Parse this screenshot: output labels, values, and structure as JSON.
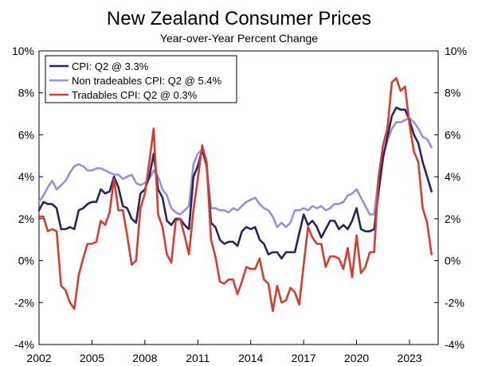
{
  "chart_data": {
    "type": "line",
    "title": "New Zealand Consumer Prices",
    "subtitle": "Year-over-Year Percent Change",
    "xlabel": "",
    "ylabel": "",
    "x_ticks": [
      "2002",
      "2005",
      "2008",
      "2011",
      "2014",
      "2017",
      "2020",
      "2023"
    ],
    "y_ticks": [
      "10%",
      "8%",
      "6%",
      "4%",
      "2%",
      "0%",
      "-2%",
      "-4%"
    ],
    "ylim": [
      -4,
      10
    ],
    "xlim": [
      "2002Q1",
      "2024Q3"
    ],
    "legend_position": "top-left",
    "grid": false,
    "series": [
      {
        "name": "CPI: Q2 @ 3.3%",
        "color": "#2b2262",
        "values": [
          [
            "2002Q1",
            2.4
          ],
          [
            "2002Q2",
            2.8
          ],
          [
            "2002Q3",
            2.7
          ],
          [
            "2002Q4",
            2.7
          ],
          [
            "2003Q1",
            2.5
          ],
          [
            "2003Q2",
            1.5
          ],
          [
            "2003Q3",
            1.5
          ],
          [
            "2003Q4",
            1.6
          ],
          [
            "2004Q1",
            1.5
          ],
          [
            "2004Q2",
            2.4
          ],
          [
            "2004Q3",
            2.5
          ],
          [
            "2004Q4",
            2.7
          ],
          [
            "2005Q1",
            2.8
          ],
          [
            "2005Q2",
            2.8
          ],
          [
            "2005Q3",
            3.4
          ],
          [
            "2005Q4",
            3.2
          ],
          [
            "2006Q1",
            3.3
          ],
          [
            "2006Q2",
            4.0
          ],
          [
            "2006Q3",
            3.5
          ],
          [
            "2006Q4",
            2.6
          ],
          [
            "2007Q1",
            2.5
          ],
          [
            "2007Q2",
            2.0
          ],
          [
            "2007Q3",
            1.8
          ],
          [
            "2007Q4",
            3.2
          ],
          [
            "2008Q1",
            3.4
          ],
          [
            "2008Q2",
            4.0
          ],
          [
            "2008Q3",
            5.1
          ],
          [
            "2008Q4",
            3.4
          ],
          [
            "2009Q1",
            3.0
          ],
          [
            "2009Q2",
            1.9
          ],
          [
            "2009Q3",
            1.7
          ],
          [
            "2009Q4",
            2.0
          ],
          [
            "2010Q1",
            2.0
          ],
          [
            "2010Q2",
            1.7
          ],
          [
            "2010Q3",
            1.5
          ],
          [
            "2010Q4",
            4.0
          ],
          [
            "2011Q1",
            4.5
          ],
          [
            "2011Q2",
            5.3
          ],
          [
            "2011Q3",
            4.6
          ],
          [
            "2011Q4",
            1.8
          ],
          [
            "2012Q1",
            1.6
          ],
          [
            "2012Q2",
            1.0
          ],
          [
            "2012Q3",
            0.8
          ],
          [
            "2012Q4",
            0.9
          ],
          [
            "2013Q1",
            0.9
          ],
          [
            "2013Q2",
            0.7
          ],
          [
            "2013Q3",
            1.4
          ],
          [
            "2013Q4",
            1.6
          ],
          [
            "2014Q1",
            1.5
          ],
          [
            "2014Q2",
            1.6
          ],
          [
            "2014Q3",
            1.0
          ],
          [
            "2014Q4",
            0.8
          ],
          [
            "2015Q1",
            0.3
          ],
          [
            "2015Q2",
            0.4
          ],
          [
            "2015Q3",
            0.4
          ],
          [
            "2015Q4",
            0.1
          ],
          [
            "2016Q1",
            0.4
          ],
          [
            "2016Q2",
            0.4
          ],
          [
            "2016Q3",
            0.4
          ],
          [
            "2016Q4",
            1.3
          ],
          [
            "2017Q1",
            2.2
          ],
          [
            "2017Q2",
            1.7
          ],
          [
            "2017Q3",
            1.9
          ],
          [
            "2017Q4",
            1.6
          ],
          [
            "2018Q1",
            1.1
          ],
          [
            "2018Q2",
            1.5
          ],
          [
            "2018Q3",
            1.9
          ],
          [
            "2018Q4",
            1.9
          ],
          [
            "2019Q1",
            1.5
          ],
          [
            "2019Q2",
            1.7
          ],
          [
            "2019Q3",
            1.5
          ],
          [
            "2019Q4",
            1.9
          ],
          [
            "2020Q1",
            2.5
          ],
          [
            "2020Q2",
            1.5
          ],
          [
            "2020Q3",
            1.4
          ],
          [
            "2020Q4",
            1.4
          ],
          [
            "2021Q1",
            1.5
          ],
          [
            "2021Q2",
            3.3
          ],
          [
            "2021Q3",
            4.9
          ],
          [
            "2021Q4",
            5.9
          ],
          [
            "2022Q1",
            6.9
          ],
          [
            "2022Q2",
            7.3
          ],
          [
            "2022Q3",
            7.2
          ],
          [
            "2022Q4",
            7.2
          ],
          [
            "2023Q1",
            6.7
          ],
          [
            "2023Q2",
            6.0
          ],
          [
            "2023Q3",
            5.6
          ],
          [
            "2023Q4",
            4.7
          ],
          [
            "2024Q1",
            4.0
          ],
          [
            "2024Q2",
            3.3
          ]
        ]
      },
      {
        "name": "Non tradeables CPI: Q2 @ 5.4%",
        "color": "#9b8fdc",
        "values": [
          [
            "2002Q1",
            2.8
          ],
          [
            "2002Q2",
            3.1
          ],
          [
            "2002Q3",
            3.5
          ],
          [
            "2002Q4",
            3.8
          ],
          [
            "2003Q1",
            3.4
          ],
          [
            "2003Q2",
            3.6
          ],
          [
            "2003Q3",
            3.8
          ],
          [
            "2003Q4",
            4.2
          ],
          [
            "2004Q1",
            4.5
          ],
          [
            "2004Q2",
            4.6
          ],
          [
            "2004Q3",
            4.5
          ],
          [
            "2004Q4",
            4.3
          ],
          [
            "2005Q1",
            4.3
          ],
          [
            "2005Q2",
            4.4
          ],
          [
            "2005Q3",
            4.4
          ],
          [
            "2005Q4",
            4.3
          ],
          [
            "2006Q1",
            4.2
          ],
          [
            "2006Q2",
            4.1
          ],
          [
            "2006Q3",
            4.1
          ],
          [
            "2006Q4",
            3.9
          ],
          [
            "2007Q1",
            4.0
          ],
          [
            "2007Q2",
            4.1
          ],
          [
            "2007Q3",
            3.7
          ],
          [
            "2007Q4",
            3.6
          ],
          [
            "2008Q1",
            3.7
          ],
          [
            "2008Q2",
            3.9
          ],
          [
            "2008Q3",
            4.3
          ],
          [
            "2008Q4",
            4.0
          ],
          [
            "2009Q1",
            3.4
          ],
          [
            "2009Q2",
            3.1
          ],
          [
            "2009Q3",
            2.5
          ],
          [
            "2009Q4",
            2.3
          ],
          [
            "2010Q1",
            2.2
          ],
          [
            "2010Q2",
            2.4
          ],
          [
            "2010Q3",
            2.6
          ],
          [
            "2010Q4",
            4.6
          ],
          [
            "2011Q1",
            5.1
          ],
          [
            "2011Q2",
            5.3
          ],
          [
            "2011Q3",
            4.4
          ],
          [
            "2011Q4",
            2.5
          ],
          [
            "2012Q1",
            2.5
          ],
          [
            "2012Q2",
            2.4
          ],
          [
            "2012Q3",
            2.4
          ],
          [
            "2012Q4",
            2.3
          ],
          [
            "2013Q1",
            2.5
          ],
          [
            "2013Q2",
            2.4
          ],
          [
            "2013Q3",
            2.6
          ],
          [
            "2013Q4",
            2.8
          ],
          [
            "2014Q1",
            2.9
          ],
          [
            "2014Q2",
            3.0
          ],
          [
            "2014Q3",
            2.7
          ],
          [
            "2014Q4",
            2.5
          ],
          [
            "2015Q1",
            2.4
          ],
          [
            "2015Q2",
            2.1
          ],
          [
            "2015Q3",
            1.6
          ],
          [
            "2015Q4",
            1.8
          ],
          [
            "2016Q1",
            1.6
          ],
          [
            "2016Q2",
            1.8
          ],
          [
            "2016Q3",
            2.4
          ],
          [
            "2016Q4",
            2.4
          ],
          [
            "2017Q1",
            2.5
          ],
          [
            "2017Q2",
            2.4
          ],
          [
            "2017Q3",
            2.6
          ],
          [
            "2017Q4",
            2.5
          ],
          [
            "2018Q1",
            2.6
          ],
          [
            "2018Q2",
            2.4
          ],
          [
            "2018Q3",
            2.5
          ],
          [
            "2018Q4",
            2.7
          ],
          [
            "2019Q1",
            2.7
          ],
          [
            "2019Q2",
            2.8
          ],
          [
            "2019Q3",
            3.1
          ],
          [
            "2019Q4",
            3.2
          ],
          [
            "2020Q1",
            3.4
          ],
          [
            "2020Q2",
            3.0
          ],
          [
            "2020Q3",
            2.6
          ],
          [
            "2020Q4",
            2.2
          ],
          [
            "2021Q1",
            2.2
          ],
          [
            "2021Q2",
            4.0
          ],
          [
            "2021Q3",
            5.0
          ],
          [
            "2021Q4",
            5.7
          ],
          [
            "2022Q1",
            6.3
          ],
          [
            "2022Q2",
            6.6
          ],
          [
            "2022Q3",
            6.6
          ],
          [
            "2022Q4",
            6.7
          ],
          [
            "2023Q1",
            6.8
          ],
          [
            "2023Q2",
            6.6
          ],
          [
            "2023Q3",
            6.3
          ],
          [
            "2023Q4",
            5.9
          ],
          [
            "2024Q1",
            5.8
          ],
          [
            "2024Q2",
            5.4
          ]
        ]
      },
      {
        "name": "Tradables CPI: Q2 @ 0.3%",
        "color": "#d63d2e",
        "values": [
          [
            "2002Q1",
            2.1
          ],
          [
            "2002Q2",
            2.1
          ],
          [
            "2002Q3",
            1.4
          ],
          [
            "2002Q4",
            1.5
          ],
          [
            "2003Q1",
            1.4
          ],
          [
            "2003Q2",
            -1.2
          ],
          [
            "2003Q3",
            -1.4
          ],
          [
            "2003Q4",
            -2.0
          ],
          [
            "2004Q1",
            -2.3
          ],
          [
            "2004Q2",
            -0.7
          ],
          [
            "2004Q3",
            0.1
          ],
          [
            "2004Q4",
            0.8
          ],
          [
            "2005Q1",
            0.8
          ],
          [
            "2005Q2",
            0.9
          ],
          [
            "2005Q3",
            1.9
          ],
          [
            "2005Q4",
            1.7
          ],
          [
            "2006Q1",
            2.3
          ],
          [
            "2006Q2",
            3.9
          ],
          [
            "2006Q3",
            2.4
          ],
          [
            "2006Q4",
            2.4
          ],
          [
            "2007Q1",
            1.2
          ],
          [
            "2007Q2",
            -0.2
          ],
          [
            "2007Q3",
            0.0
          ],
          [
            "2007Q4",
            2.5
          ],
          [
            "2008Q1",
            3.2
          ],
          [
            "2008Q2",
            4.7
          ],
          [
            "2008Q3",
            6.3
          ],
          [
            "2008Q4",
            2.2
          ],
          [
            "2009Q1",
            1.6
          ],
          [
            "2009Q2",
            0.3
          ],
          [
            "2009Q3",
            -0.1
          ],
          [
            "2009Q4",
            1.9
          ],
          [
            "2010Q1",
            2.0
          ],
          [
            "2010Q2",
            1.2
          ],
          [
            "2010Q3",
            0.3
          ],
          [
            "2010Q4",
            2.4
          ],
          [
            "2011Q1",
            3.9
          ],
          [
            "2011Q2",
            5.5
          ],
          [
            "2011Q3",
            4.7
          ],
          [
            "2011Q4",
            1.0
          ],
          [
            "2012Q1",
            0.2
          ],
          [
            "2012Q2",
            -1.0
          ],
          [
            "2012Q3",
            -1.1
          ],
          [
            "2012Q4",
            -0.9
          ],
          [
            "2013Q1",
            -0.9
          ],
          [
            "2013Q2",
            -1.6
          ],
          [
            "2013Q3",
            -1.0
          ],
          [
            "2013Q4",
            -0.3
          ],
          [
            "2014Q1",
            -0.4
          ],
          [
            "2014Q2",
            -0.4
          ],
          [
            "2014Q3",
            0.1
          ],
          [
            "2014Q4",
            -0.9
          ],
          [
            "2015Q1",
            -1.1
          ],
          [
            "2015Q2",
            -2.4
          ],
          [
            "2015Q3",
            -1.2
          ],
          [
            "2015Q4",
            -2.0
          ],
          [
            "2016Q1",
            -1.9
          ],
          [
            "2016Q2",
            -1.3
          ],
          [
            "2016Q3",
            -1.5
          ],
          [
            "2016Q4",
            -2.1
          ],
          [
            "2017Q1",
            -0.2
          ],
          [
            "2017Q2",
            1.6
          ],
          [
            "2017Q3",
            1.1
          ],
          [
            "2017Q4",
            0.8
          ],
          [
            "2018Q1",
            0.8
          ],
          [
            "2018Q2",
            -0.3
          ],
          [
            "2018Q3",
            0.2
          ],
          [
            "2018Q4",
            0.2
          ],
          [
            "2019Q1",
            0.1
          ],
          [
            "2019Q2",
            -0.4
          ],
          [
            "2019Q3",
            0.6
          ],
          [
            "2019Q4",
            -0.8
          ],
          [
            "2020Q1",
            1.2
          ],
          [
            "2020Q2",
            -0.6
          ],
          [
            "2020Q3",
            -0.3
          ],
          [
            "2020Q4",
            0.4
          ],
          [
            "2021Q1",
            0.4
          ],
          [
            "2021Q2",
            4.0
          ],
          [
            "2021Q3",
            5.5
          ],
          [
            "2021Q4",
            6.3
          ],
          [
            "2022Q1",
            8.5
          ],
          [
            "2022Q2",
            8.7
          ],
          [
            "2022Q3",
            8.1
          ],
          [
            "2022Q4",
            8.3
          ],
          [
            "2023Q1",
            6.5
          ],
          [
            "2023Q2",
            5.2
          ],
          [
            "2023Q3",
            4.7
          ],
          [
            "2023Q4",
            2.5
          ],
          [
            "2024Q1",
            1.8
          ],
          [
            "2024Q2",
            0.3
          ]
        ]
      }
    ]
  }
}
